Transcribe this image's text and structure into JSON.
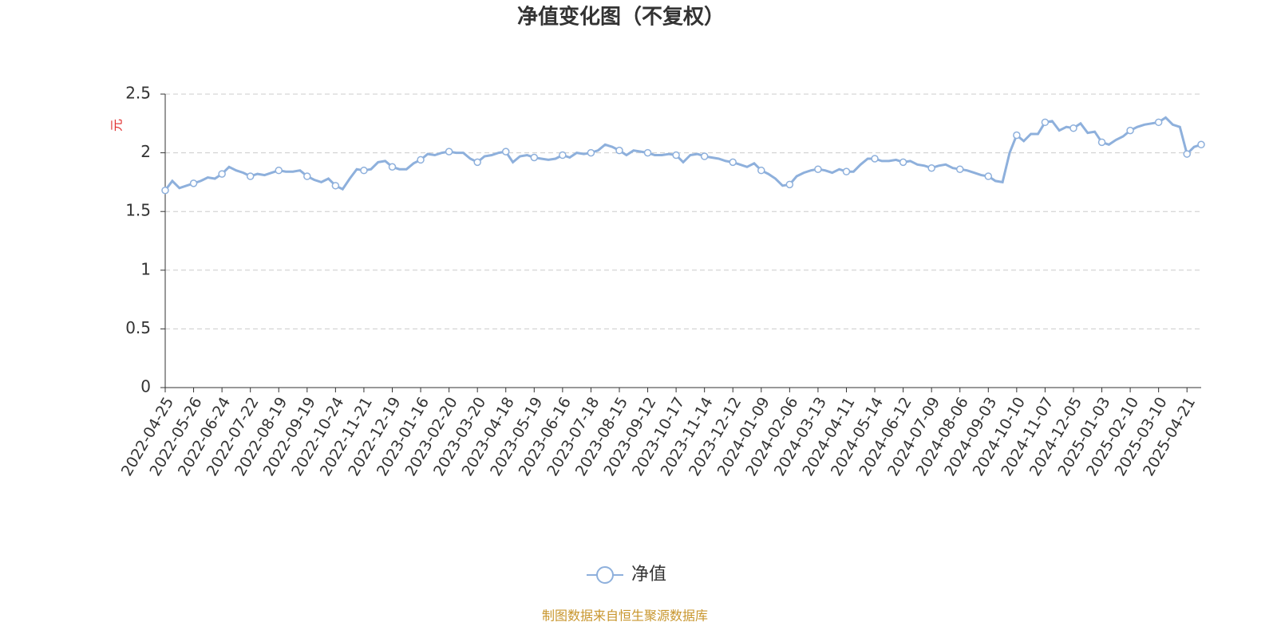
{
  "chart_data": {
    "type": "line",
    "title": "净值变化图（不复权）",
    "y_label": "元",
    "source": "制图数据来自恒生聚源数据库",
    "x": [
      "2022-04-25",
      null,
      null,
      null,
      "2022-05-26",
      null,
      null,
      null,
      "2022-06-24",
      null,
      null,
      null,
      "2022-07-22",
      null,
      null,
      null,
      "2022-08-19",
      null,
      null,
      null,
      "2022-09-19",
      null,
      null,
      null,
      "2022-10-24",
      null,
      null,
      null,
      "2022-11-21",
      null,
      null,
      null,
      "2022-12-19",
      null,
      null,
      null,
      "2023-01-16",
      null,
      null,
      null,
      "2023-02-20",
      null,
      null,
      null,
      "2023-03-20",
      null,
      null,
      null,
      "2023-04-18",
      null,
      null,
      null,
      "2023-05-19",
      null,
      null,
      null,
      "2023-06-16",
      null,
      null,
      null,
      "2023-07-18",
      null,
      null,
      null,
      "2023-08-15",
      null,
      null,
      null,
      "2023-09-12",
      null,
      null,
      null,
      "2023-10-17",
      null,
      null,
      null,
      "2023-11-14",
      null,
      null,
      null,
      "2023-12-12",
      null,
      null,
      null,
      "2024-01-09",
      null,
      null,
      null,
      "2024-02-06",
      null,
      null,
      null,
      "2024-03-13",
      null,
      null,
      null,
      "2024-04-11",
      null,
      null,
      null,
      "2024-05-14",
      null,
      null,
      null,
      "2024-06-12",
      null,
      null,
      null,
      "2024-07-09",
      null,
      null,
      null,
      "2024-08-06",
      null,
      null,
      null,
      "2024-09-03",
      null,
      null,
      null,
      "2024-10-10",
      null,
      null,
      null,
      "2024-11-07",
      null,
      null,
      null,
      "2024-12-05",
      null,
      null,
      null,
      "2025-01-03",
      null,
      null,
      null,
      "2025-02-10",
      null,
      null,
      null,
      "2025-03-10",
      null,
      null,
      null,
      "2025-04-21",
      null,
      null
    ],
    "series": [
      {
        "name": "净值",
        "color": "#8eb0dc",
        "values": [
          1.68,
          1.76,
          1.7,
          1.72,
          1.74,
          1.76,
          1.79,
          1.78,
          1.82,
          1.88,
          1.85,
          1.83,
          1.8,
          1.82,
          1.81,
          1.83,
          1.85,
          1.84,
          1.84,
          1.85,
          1.8,
          1.77,
          1.75,
          1.78,
          1.72,
          1.69,
          1.78,
          1.86,
          1.85,
          1.86,
          1.92,
          1.93,
          1.88,
          1.86,
          1.86,
          1.91,
          1.94,
          1.99,
          1.98,
          2.0,
          2.01,
          2.0,
          2.0,
          1.95,
          1.92,
          1.97,
          1.98,
          2.0,
          2.01,
          1.92,
          1.97,
          1.98,
          1.96,
          1.95,
          1.94,
          1.95,
          1.98,
          1.96,
          2.0,
          1.99,
          2.0,
          2.02,
          2.07,
          2.05,
          2.02,
          1.98,
          2.02,
          2.01,
          2.0,
          1.98,
          1.98,
          1.99,
          1.98,
          1.92,
          1.98,
          1.99,
          1.97,
          1.96,
          1.95,
          1.93,
          1.92,
          1.9,
          1.88,
          1.91,
          1.85,
          1.82,
          1.78,
          1.72,
          1.73,
          1.8,
          1.83,
          1.85,
          1.86,
          1.85,
          1.83,
          1.86,
          1.84,
          1.84,
          1.9,
          1.95,
          1.95,
          1.93,
          1.93,
          1.94,
          1.92,
          1.93,
          1.9,
          1.89,
          1.87,
          1.89,
          1.9,
          1.87,
          1.86,
          1.85,
          1.83,
          1.81,
          1.8,
          1.76,
          1.75,
          2.0,
          2.15,
          2.1,
          2.16,
          2.16,
          2.26,
          2.27,
          2.19,
          2.22,
          2.21,
          2.25,
          2.17,
          2.18,
          2.09,
          2.07,
          2.11,
          2.14,
          2.19,
          2.22,
          2.24,
          2.25,
          2.26,
          2.3,
          2.24,
          2.22,
          1.99,
          2.05,
          2.07
        ]
      }
    ],
    "ylim": [
      0,
      2.5
    ],
    "yticks": [
      0,
      0.5,
      1,
      1.5,
      2,
      2.5
    ],
    "grid": true
  }
}
